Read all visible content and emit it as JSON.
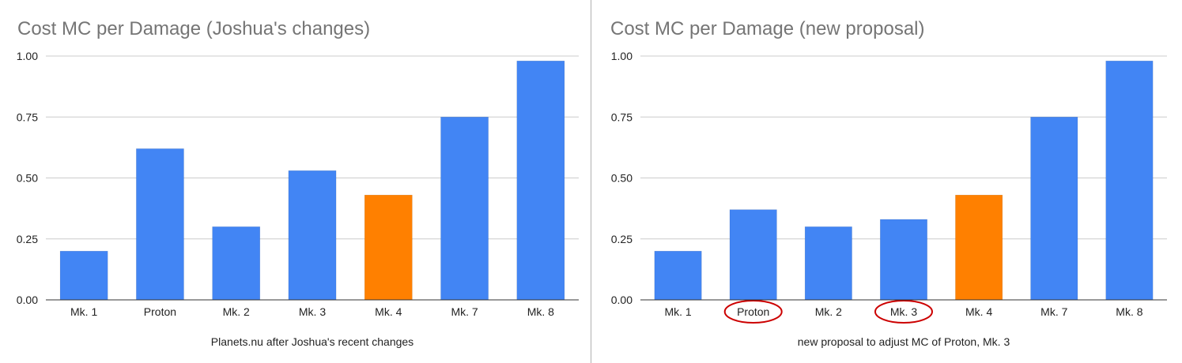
{
  "chart_data": [
    {
      "type": "bar",
      "title": "Cost MC per Damage (Joshua's changes)",
      "xlabel": "Planets.nu after Joshua's recent changes",
      "ylabel": "",
      "categories": [
        "Mk. 1",
        "Proton",
        "Mk. 2",
        "Mk. 3",
        "Mk. 4",
        "Mk. 7",
        "Mk. 8"
      ],
      "values": [
        0.2,
        0.62,
        0.3,
        0.53,
        0.43,
        0.75,
        0.98
      ],
      "bar_colors": [
        "#4285f4",
        "#4285f4",
        "#4285f4",
        "#4285f4",
        "#ff8000",
        "#4285f4",
        "#4285f4"
      ],
      "ylim": [
        0,
        1.0
      ],
      "yticks": [
        "0.00",
        "0.25",
        "0.50",
        "0.75",
        "1.00"
      ],
      "grid": true,
      "legend": "none",
      "circled_categories": []
    },
    {
      "type": "bar",
      "title": "Cost MC per Damage (new proposal)",
      "xlabel": "new proposal to adjust MC of Proton, Mk. 3",
      "ylabel": "",
      "categories": [
        "Mk. 1",
        "Proton",
        "Mk. 2",
        "Mk. 3",
        "Mk. 4",
        "Mk. 7",
        "Mk. 8"
      ],
      "values": [
        0.2,
        0.37,
        0.3,
        0.33,
        0.43,
        0.75,
        0.98
      ],
      "bar_colors": [
        "#4285f4",
        "#4285f4",
        "#4285f4",
        "#4285f4",
        "#ff8000",
        "#4285f4",
        "#4285f4"
      ],
      "ylim": [
        0,
        1.0
      ],
      "yticks": [
        "0.00",
        "0.25",
        "0.50",
        "0.75",
        "1.00"
      ],
      "grid": true,
      "legend": "none",
      "circled_categories": [
        "Proton",
        "Mk. 3"
      ],
      "annotation_color": "#cc0000"
    }
  ]
}
